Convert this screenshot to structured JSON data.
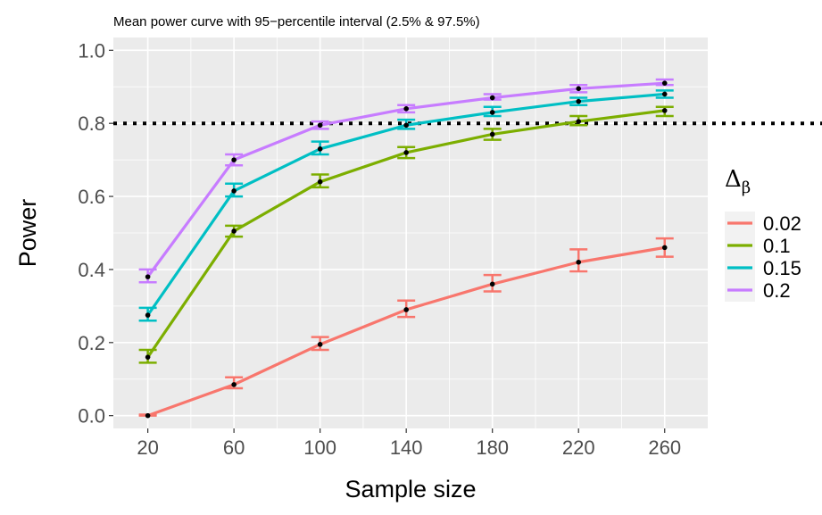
{
  "chart_data": {
    "type": "line",
    "title": "Mean power curve with 95−percentile interval (2.5% & 97.5%)",
    "xlabel": "Sample size",
    "ylabel": "Power",
    "x": [
      20,
      60,
      100,
      140,
      180,
      220,
      260
    ],
    "x_ticks": [
      "20",
      "60",
      "100",
      "140",
      "180",
      "220",
      "260"
    ],
    "y_ticks": [
      "0.0",
      "0.2",
      "0.4",
      "0.6",
      "0.8",
      "1.0"
    ],
    "xlim": [
      4,
      280
    ],
    "ylim": [
      -0.035,
      1.035
    ],
    "grid": true,
    "reference_line": {
      "y": 0.8,
      "style": "dotted"
    },
    "legend": {
      "title": "Δ",
      "title_subscript": "β",
      "position": "right"
    },
    "series": [
      {
        "name": "0.02",
        "color": "#F8766D",
        "values": [
          0.0,
          0.085,
          0.195,
          0.29,
          0.36,
          0.42,
          0.46
        ],
        "lower": [
          0.0,
          0.075,
          0.18,
          0.27,
          0.34,
          0.395,
          0.435
        ],
        "upper": [
          0.003,
          0.105,
          0.215,
          0.315,
          0.385,
          0.455,
          0.485
        ]
      },
      {
        "name": "0.1",
        "color": "#7CAE00",
        "values": [
          0.16,
          0.505,
          0.64,
          0.72,
          0.77,
          0.805,
          0.835
        ],
        "lower": [
          0.145,
          0.49,
          0.625,
          0.705,
          0.755,
          0.795,
          0.82
        ],
        "upper": [
          0.18,
          0.52,
          0.66,
          0.735,
          0.785,
          0.82,
          0.845
        ]
      },
      {
        "name": "0.15",
        "color": "#00BFC4",
        "values": [
          0.275,
          0.615,
          0.73,
          0.795,
          0.83,
          0.86,
          0.88
        ],
        "lower": [
          0.26,
          0.6,
          0.715,
          0.785,
          0.82,
          0.85,
          0.87
        ],
        "upper": [
          0.295,
          0.635,
          0.75,
          0.81,
          0.845,
          0.87,
          0.89
        ]
      },
      {
        "name": "0.2",
        "color": "#C77CFF",
        "values": [
          0.38,
          0.7,
          0.795,
          0.84,
          0.87,
          0.895,
          0.91
        ],
        "lower": [
          0.365,
          0.685,
          0.785,
          0.83,
          0.865,
          0.885,
          0.905
        ],
        "upper": [
          0.4,
          0.715,
          0.805,
          0.85,
          0.88,
          0.905,
          0.92
        ]
      }
    ],
    "point_color": "#000000"
  }
}
